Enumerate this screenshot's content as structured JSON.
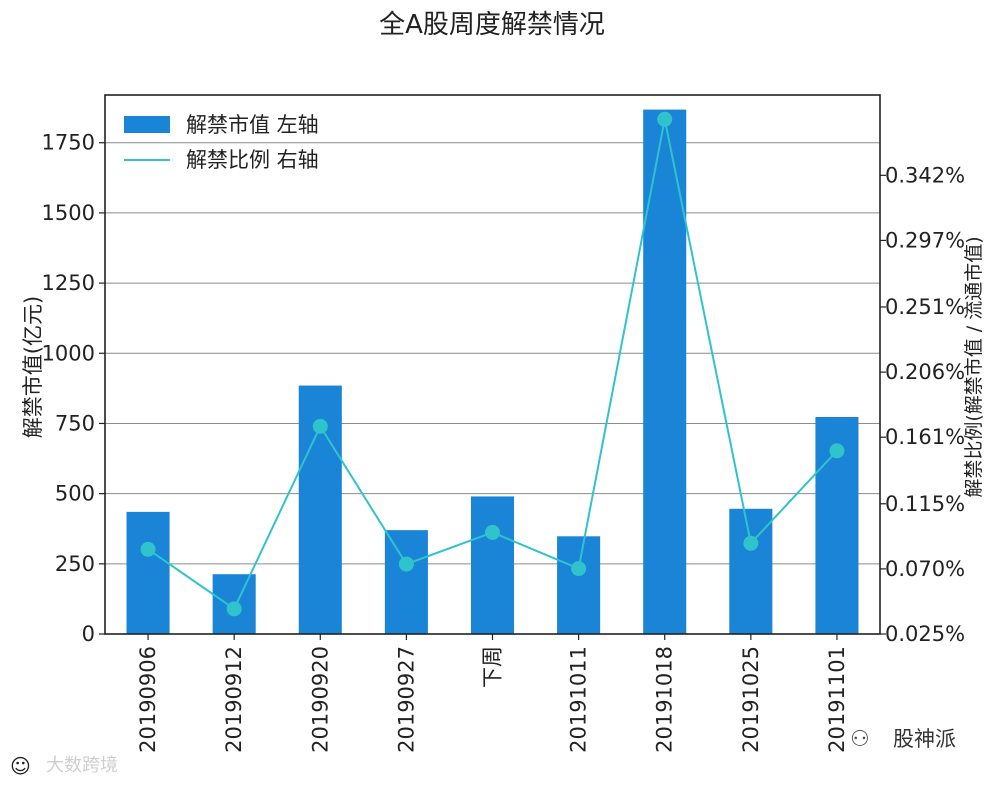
{
  "chart_data": {
    "type": "bar",
    "title": "全A股周度解禁情况",
    "categories": [
      "20190906",
      "20190912",
      "20190920",
      "20190927",
      "下周",
      "20191011",
      "20191018",
      "20191025",
      "20191101"
    ],
    "series": [
      {
        "name": "解禁市值 左轴",
        "type": "bar",
        "axis": "left",
        "color": "#1a84d6",
        "values": [
          435,
          213,
          885,
          370,
          490,
          348,
          1868,
          446,
          773
        ]
      },
      {
        "name": "解禁比例 右轴",
        "type": "line",
        "axis": "right",
        "color": "#2fc3cc",
        "values": [
          0.0835,
          0.0424,
          0.1685,
          0.0733,
          0.0952,
          0.0702,
          0.3807,
          0.0877,
          0.1516
        ]
      }
    ],
    "left_axis": {
      "label": "解禁市值(亿元)",
      "ylim": [
        0,
        1920
      ],
      "ticks": [
        0,
        250,
        500,
        750,
        1000,
        1250,
        1500,
        1750
      ],
      "tick_labels": [
        "0",
        "250",
        "500",
        "750",
        "1000",
        "1250",
        "1500",
        "1750"
      ]
    },
    "right_axis": {
      "label": "解禁比例(解禁市值 / 流通市值)",
      "ylim": [
        0.025,
        0.3975
      ],
      "ticks": [
        0.025,
        0.07,
        0.115,
        0.161,
        0.206,
        0.251,
        0.297,
        0.342
      ],
      "tick_labels": [
        "0.025%",
        "0.070%",
        "0.115%",
        "0.161%",
        "0.206%",
        "0.251%",
        "0.297%",
        "0.342%"
      ]
    },
    "grid": true,
    "legend_position": "top-left",
    "watermarks": [
      "大数跨境",
      "股神派"
    ]
  }
}
